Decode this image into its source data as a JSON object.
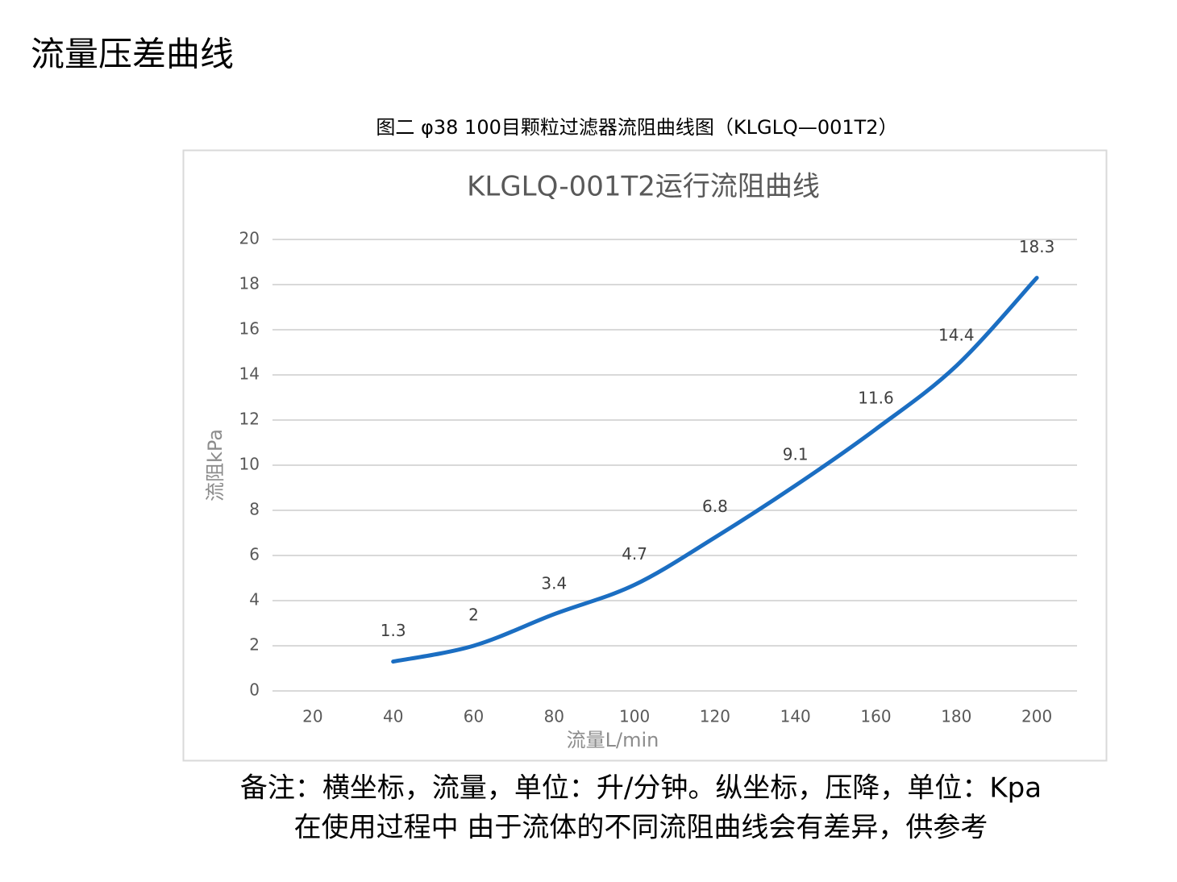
{
  "heading": "流量压差曲线",
  "caption": "图二 φ38 100目颗粒过滤器流阻曲线图（KLGLQ—001T2）",
  "notes": [
    "备注：横坐标，流量，单位：升/分钟。纵坐标，压降，单位：Kpa",
    "在使用过程中 由于流体的不同流阻曲线会有差异，供参考"
  ],
  "chart_data": {
    "type": "line",
    "title": "KLGLQ-001T2运行流阻曲线",
    "x_label": "流量L/min",
    "y_label": "流阻kPa",
    "x": [
      40,
      60,
      80,
      100,
      120,
      140,
      160,
      180,
      200
    ],
    "values": [
      1.3,
      2,
      3.4,
      4.7,
      6.8,
      9.1,
      11.6,
      14.4,
      18.3
    ],
    "color": "#1b6ec2",
    "xlim": [
      10,
      210
    ],
    "xticks": [
      20,
      40,
      60,
      80,
      100,
      120,
      140,
      160,
      180,
      200
    ],
    "ylim": [
      0,
      20
    ],
    "yticks": [
      0,
      2,
      4,
      6,
      8,
      10,
      12,
      14,
      16,
      18,
      20
    ],
    "grid": true,
    "smooth": true
  }
}
